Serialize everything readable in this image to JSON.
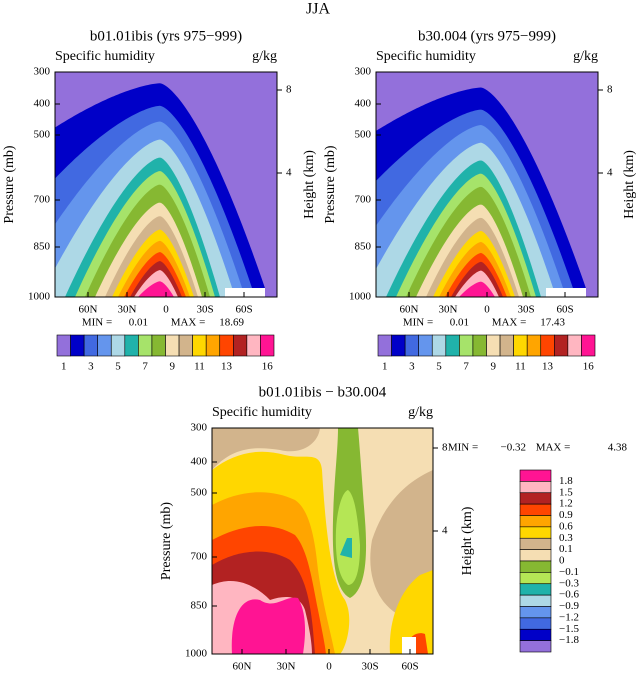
{
  "title": "JJA",
  "panels": [
    {
      "title": "b01.01ibis (yrs 975−999)",
      "subtitle": "Specific humidity",
      "units": "g/kg",
      "ylabel": "Pressure (mb)",
      "y2label": "Height (km)",
      "yticks": [
        "300",
        "400",
        "500",
        "700",
        "850",
        "1000"
      ],
      "y2ticks": [
        "8",
        "4"
      ],
      "xticks": [
        "60N",
        "30N",
        "0",
        "30S",
        "60S"
      ],
      "min_label": "MIN =",
      "min": "0.01",
      "max_label": "MAX =",
      "max": "18.69"
    },
    {
      "title": "b30.004 (yrs 975−999)",
      "subtitle": "Specific humidity",
      "units": "g/kg",
      "ylabel": "Pressure (mb)",
      "y2label": "Height (km)",
      "yticks": [
        "300",
        "400",
        "500",
        "700",
        "850",
        "1000"
      ],
      "y2ticks": [
        "8",
        "4"
      ],
      "xticks": [
        "60N",
        "30N",
        "0",
        "30S",
        "60S"
      ],
      "min_label": "MIN =",
      "min": "0.01",
      "max_label": "MAX =",
      "max": "17.43"
    },
    {
      "title": "b01.01ibis − b30.004",
      "subtitle": "Specific humidity",
      "units": "g/kg",
      "ylabel": "Pressure (mb)",
      "y2label": "Height (km)",
      "yticks": [
        "300",
        "400",
        "500",
        "700",
        "850",
        "1000"
      ],
      "y2ticks": [
        "8",
        "4"
      ],
      "xticks": [
        "60N",
        "30N",
        "0",
        "30S",
        "60S"
      ],
      "min_label": "MIN =",
      "min": "−0.32",
      "max_label": "MAX =",
      "max": "4.38"
    }
  ],
  "colorbar": {
    "labels": [
      "1",
      "3",
      "5",
      "7",
      "9",
      "11",
      "13",
      "16"
    ],
    "colors": [
      "#9370db",
      "#0000c8",
      "#4169e1",
      "#6495ed",
      "#add8e6",
      "#20b2aa",
      "#a6e36a",
      "#86b832",
      "#f5deb3",
      "#d2b48c",
      "#ffd700",
      "#ffa500",
      "#ff4500",
      "#b22222",
      "#ffb6c1",
      "#ff1493"
    ]
  },
  "diff_colorbar": {
    "labels": [
      "1.8",
      "1.5",
      "1.2",
      "0.9",
      "0.6",
      "0.3",
      "0.1",
      "0",
      "−0.1",
      "−0.3",
      "−0.6",
      "−0.9",
      "−1.2",
      "−1.5",
      "−1.8"
    ],
    "colors": [
      "#ff1493",
      "#ffb6c1",
      "#b22222",
      "#ff4500",
      "#ffa500",
      "#ffd700",
      "#d2b48c",
      "#f5deb3",
      "#86b832",
      "#b5e655",
      "#20b2aa",
      "#add8e6",
      "#6495ed",
      "#4169e1",
      "#0000c8",
      "#9370db"
    ]
  }
}
